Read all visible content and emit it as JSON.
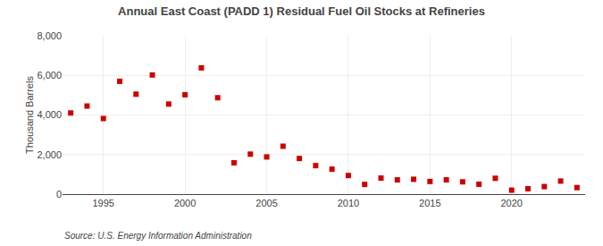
{
  "chart_data": {
    "type": "scatter",
    "title": "Annual East Coast (PADD 1) Residual Fuel Oil Stocks at Refineries",
    "ylabel": "Thousand Barrels",
    "annotations": [
      "Source: U.S. Energy Information Administration"
    ],
    "x": [
      1993,
      1994,
      1995,
      1996,
      1997,
      1998,
      1999,
      2000,
      2001,
      2002,
      2003,
      2004,
      2005,
      2006,
      2007,
      2008,
      2009,
      2010,
      2011,
      2012,
      2013,
      2014,
      2015,
      2016,
      2017,
      2018,
      2019,
      2020,
      2021,
      2022,
      2023,
      2024
    ],
    "values": [
      4100,
      4450,
      3820,
      5700,
      5050,
      6020,
      4550,
      5020,
      6380,
      4870,
      1580,
      2020,
      1880,
      2420,
      1800,
      1440,
      1260,
      940,
      490,
      810,
      720,
      750,
      640,
      720,
      620,
      500,
      800,
      200,
      270,
      380,
      660,
      330
    ],
    "color": "#cc0000",
    "marker": "square",
    "xlim": [
      1992.5,
      2024.5
    ],
    "xticks": [
      1995,
      2000,
      2005,
      2010,
      2015,
      2020
    ],
    "ylim": [
      0,
      8000
    ],
    "yticks": [
      0,
      {
        "value": 2000,
        "label": "2,000"
      },
      {
        "value": 4000,
        "label": "4,000"
      },
      {
        "value": 6000,
        "label": "6,000"
      },
      {
        "value": 8000,
        "label": "8,000"
      }
    ],
    "grid": true
  }
}
